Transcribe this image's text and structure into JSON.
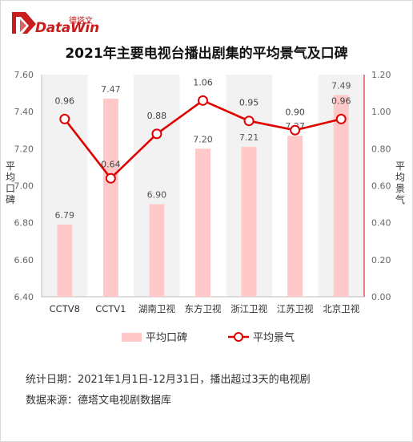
{
  "brand": {
    "name_cn": "德塔文",
    "name_en": "DataWin",
    "accent": "#c81e1e"
  },
  "chart_data": {
    "type": "bar",
    "title": "2021年主要电视台播出剧集的平均景气及口碑",
    "categories": [
      "CCTV8",
      "CCTV1",
      "湖南卫视",
      "东方卫视",
      "浙江卫视",
      "江苏卫视",
      "北京卫视"
    ],
    "series": [
      {
        "name": "平均口碑",
        "type": "bar",
        "axis": "left",
        "color": "#ffc9c9",
        "values": [
          6.79,
          7.47,
          6.9,
          7.2,
          7.21,
          7.27,
          7.49
        ],
        "labels": [
          "6.79",
          "7.47",
          "6.90",
          "7.20",
          "7.21",
          "7.27",
          "7.49"
        ]
      },
      {
        "name": "平均景气",
        "type": "line",
        "axis": "right",
        "color": "#e00000",
        "values": [
          0.96,
          0.64,
          0.88,
          1.06,
          0.95,
          0.9,
          0.96
        ],
        "labels": [
          "0.96",
          "0.64",
          "0.88",
          "1.06",
          "0.95",
          "0.90",
          "0.96"
        ]
      }
    ],
    "y_left": {
      "label": "平均口碑",
      "ylim": [
        6.4,
        7.6
      ],
      "ticks": [
        "6.40",
        "6.60",
        "6.80",
        "7.00",
        "7.20",
        "7.40",
        "7.60"
      ]
    },
    "y_right": {
      "label": "平均景气",
      "ylim": [
        0.0,
        1.2
      ],
      "ticks": [
        "0.00",
        "0.20",
        "0.40",
        "0.60",
        "0.80",
        "1.00",
        "1.20"
      ]
    },
    "legend": "bottom-center",
    "grid": "vertical-bands"
  },
  "notes": {
    "line1": "统计日期：2021年1月1日-12月31日，播出超过3天的电视剧",
    "line2": "数据来源：德塔文电视剧数据库"
  }
}
